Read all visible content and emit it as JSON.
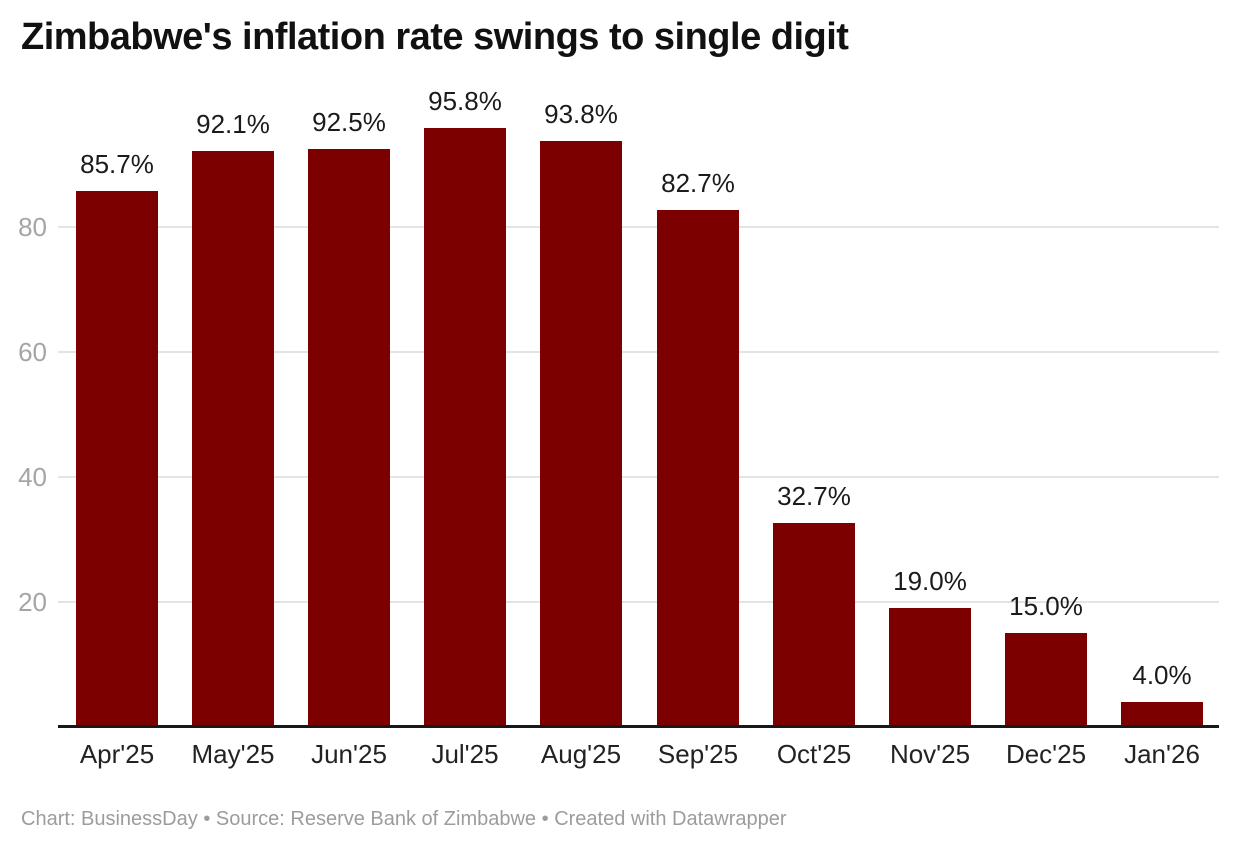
{
  "chart_data": {
    "type": "bar",
    "title": "Zimbabwe's inflation rate swings to single digit",
    "categories": [
      "Apr'25",
      "May'25",
      "Jun'25",
      "Jul'25",
      "Aug'25",
      "Sep'25",
      "Oct'25",
      "Nov'25",
      "Dec'25",
      "Jan'26"
    ],
    "values": [
      85.7,
      92.1,
      92.5,
      95.8,
      93.8,
      82.7,
      32.7,
      19.0,
      15.0,
      4.0
    ],
    "value_labels": [
      "85.7%",
      "92.1%",
      "92.5%",
      "95.8%",
      "93.8%",
      "82.7%",
      "32.7%",
      "19.0%",
      "15.0%",
      "4.0%"
    ],
    "xlabel": "",
    "ylabel": "",
    "y_ticks": [
      20,
      40,
      60,
      80
    ],
    "y_tick_labels": [
      "20",
      "40",
      "60",
      "80"
    ],
    "ylim": [
      0,
      100
    ],
    "grid": "horizontal",
    "legend": "none",
    "bar_color": "#7d0000",
    "gridline_color": "#e4e4e4",
    "axis_line_color": "#181818",
    "tick_label_color": "#a5a5a5"
  },
  "footer": {
    "chart_credit": "Chart: BusinessDay",
    "separator": "•",
    "source": "Source: Reserve Bank of Zimbabwe",
    "created_with": "Created with Datawrapper"
  }
}
